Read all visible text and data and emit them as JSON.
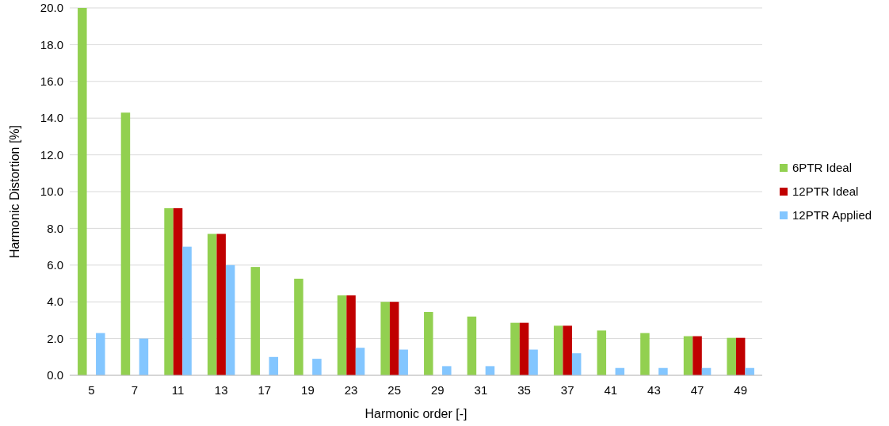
{
  "chart_data": {
    "type": "bar",
    "xlabel": "Harmonic order [-]",
    "ylabel": "Harmonic Distortion [%]",
    "categories": [
      "5",
      "7",
      "11",
      "13",
      "17",
      "19",
      "23",
      "25",
      "29",
      "31",
      "35",
      "37",
      "41",
      "43",
      "47",
      "49"
    ],
    "series": [
      {
        "name": "6PTR Ideal",
        "color": "#92d050",
        "values": [
          20.0,
          14.3,
          9.1,
          7.7,
          5.9,
          5.26,
          4.35,
          4.0,
          3.45,
          3.2,
          2.86,
          2.7,
          2.44,
          2.3,
          2.13,
          2.04
        ]
      },
      {
        "name": "12PTR Ideal",
        "color": "#c00000",
        "values": [
          null,
          null,
          9.1,
          7.7,
          null,
          null,
          4.35,
          4.0,
          null,
          null,
          2.86,
          2.7,
          null,
          null,
          2.13,
          2.04
        ]
      },
      {
        "name": "12PTR Applied",
        "color": "#83c6ff",
        "values": [
          2.3,
          2.0,
          7.0,
          6.0,
          1.0,
          0.9,
          1.5,
          1.4,
          0.5,
          0.5,
          1.4,
          1.2,
          0.4,
          0.4,
          0.4,
          0.4
        ]
      }
    ],
    "ylim": [
      0,
      20
    ],
    "yticks": [
      {
        "value": 0,
        "label": "0.0"
      },
      {
        "value": 2,
        "label": "2.0"
      },
      {
        "value": 4,
        "label": "4.0"
      },
      {
        "value": 6,
        "label": "6.0"
      },
      {
        "value": 8,
        "label": "8.0"
      },
      {
        "value": 10,
        "label": "10.0"
      },
      {
        "value": 12,
        "label": "12.0"
      },
      {
        "value": 14,
        "label": "14.0"
      },
      {
        "value": 16,
        "label": "16.0"
      },
      {
        "value": 18,
        "label": "18.0"
      },
      {
        "value": 20,
        "label": "20.0"
      }
    ],
    "grid": "y",
    "legend": "right"
  }
}
